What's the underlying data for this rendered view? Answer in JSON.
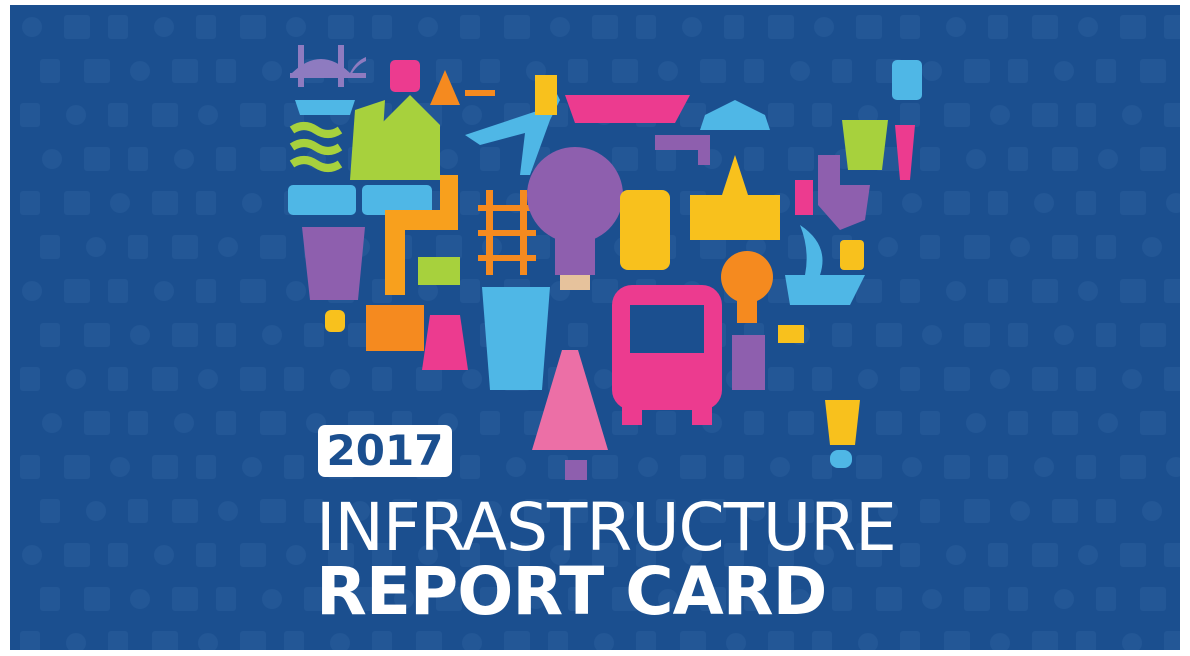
{
  "badge": {
    "year": "2017"
  },
  "title": {
    "line1": "INFRASTRUCTURE",
    "line2": "REPORT CARD"
  }
}
